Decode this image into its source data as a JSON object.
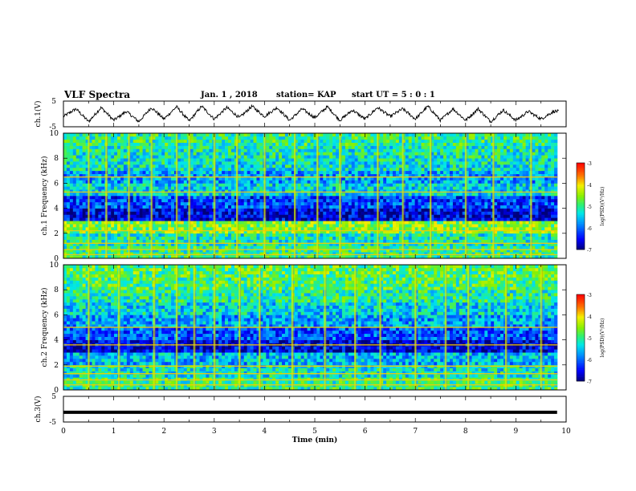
{
  "header": {
    "title": "VLF Spectra",
    "date": "Jan. 1 , 2018",
    "station": "station= KAP",
    "start_ut": "start UT = 5 : 0 : 1"
  },
  "chart_data": [
    {
      "type": "line",
      "panel": "waveform-ch1",
      "ylabel": "ch.1(V)",
      "ylim": [
        -5,
        5
      ],
      "yticks": [
        -5,
        5
      ],
      "description_of_series": "triangular-ish oscillation between about -3 and 3 V, period about 0.5 min",
      "x": [
        0.0,
        0.25,
        0.5,
        0.75,
        1.0,
        1.25,
        1.5,
        1.75,
        2.0,
        2.25,
        2.5,
        2.75,
        3.0,
        3.25,
        3.5,
        3.75,
        4.0,
        4.25,
        4.5,
        4.75,
        5.0,
        5.25,
        5.5,
        5.75,
        6.0,
        6.25,
        6.5,
        6.75,
        7.0,
        7.25,
        7.5,
        7.75,
        8.0,
        8.25,
        8.5,
        8.75,
        9.0,
        9.25,
        9.5,
        9.75
      ],
      "y": [
        -1.0,
        2.0,
        -3.0,
        2.5,
        -2.5,
        1.0,
        -3.0,
        2.5,
        -2.0,
        2.8,
        -2.8,
        3.0,
        -2.0,
        2.5,
        -1.5,
        3.0,
        -1.0,
        2.5,
        -2.5,
        2.0,
        -1.5,
        2.8,
        -2.5,
        1.5,
        -2.0,
        2.5,
        -1.0,
        2.0,
        -2.0,
        3.0,
        -2.5,
        2.0,
        -2.5,
        2.0,
        -3.0,
        1.5,
        -2.5,
        1.0,
        -2.0,
        1.0
      ]
    },
    {
      "type": "heatmap",
      "panel": "spectrogram-ch1",
      "ylabel": "ch.1 Frequency (kHz)",
      "ylim": [
        0,
        10
      ],
      "yticks": [
        0,
        2,
        4,
        6,
        8,
        10
      ],
      "colorbar": {
        "label": "log(PSD)(V²/Hz)",
        "range": [
          -7,
          -3
        ],
        "ticks": [
          -3,
          -4,
          -5,
          -6,
          -7
        ]
      },
      "freq_bands_khz": [
        0,
        1,
        2,
        3,
        4,
        5,
        6,
        7,
        8,
        9
      ],
      "band_log_psd": [
        -5.0,
        -5.2,
        -4.6,
        -6.6,
        -6.2,
        -5.4,
        -5.7,
        -5.3,
        -5.2,
        -5.0
      ],
      "horizontal_lines_khz": [
        0.3,
        0.7,
        1.2,
        2.2,
        5.3,
        6.5
      ],
      "vertical_bursts_min": [
        0.5,
        0.85,
        1.3,
        1.75,
        2.25,
        2.5,
        3.0,
        3.45,
        4.0,
        4.6,
        5.05,
        5.5,
        6.25,
        6.75,
        7.3,
        8.0,
        8.55,
        9.3
      ]
    },
    {
      "type": "heatmap",
      "panel": "spectrogram-ch2",
      "ylabel": "ch.2 Frequency (kHz)",
      "ylim": [
        0,
        10
      ],
      "yticks": [
        0,
        2,
        4,
        6,
        8,
        10
      ],
      "colorbar": {
        "label": "log(PSD)(V²/Hz)",
        "range": [
          -7,
          -3
        ],
        "ticks": [
          -3,
          -4,
          -5,
          -6,
          -7
        ]
      },
      "freq_bands_khz": [
        0,
        1,
        2,
        3,
        4,
        5,
        6,
        7,
        8,
        9
      ],
      "band_log_psd": [
        -5.0,
        -5.3,
        -5.6,
        -6.6,
        -6.1,
        -5.7,
        -5.4,
        -5.1,
        -4.9,
        -4.8
      ],
      "horizontal_lines_khz": [
        0.4,
        0.8,
        1.3,
        1.9,
        3.6,
        5.0
      ],
      "vertical_bursts_min": [
        0.5,
        1.1,
        1.8,
        2.25,
        2.6,
        3.0,
        3.5,
        3.9,
        4.55,
        5.2,
        5.8,
        6.3,
        7.0,
        7.6,
        8.05,
        8.8,
        9.5
      ]
    },
    {
      "type": "line",
      "panel": "waveform-ch3",
      "ylabel": "ch.3(V)",
      "xlabel": "Time (min)",
      "ylim": [
        -5,
        5
      ],
      "yticks": [
        -5,
        5
      ],
      "xlim": [
        0,
        10
      ],
      "xticks": [
        0,
        1,
        2,
        3,
        4,
        5,
        6,
        7,
        8,
        9,
        10
      ],
      "x": [
        0,
        9.82
      ],
      "y": [
        -1.2,
        -1.2
      ]
    }
  ]
}
